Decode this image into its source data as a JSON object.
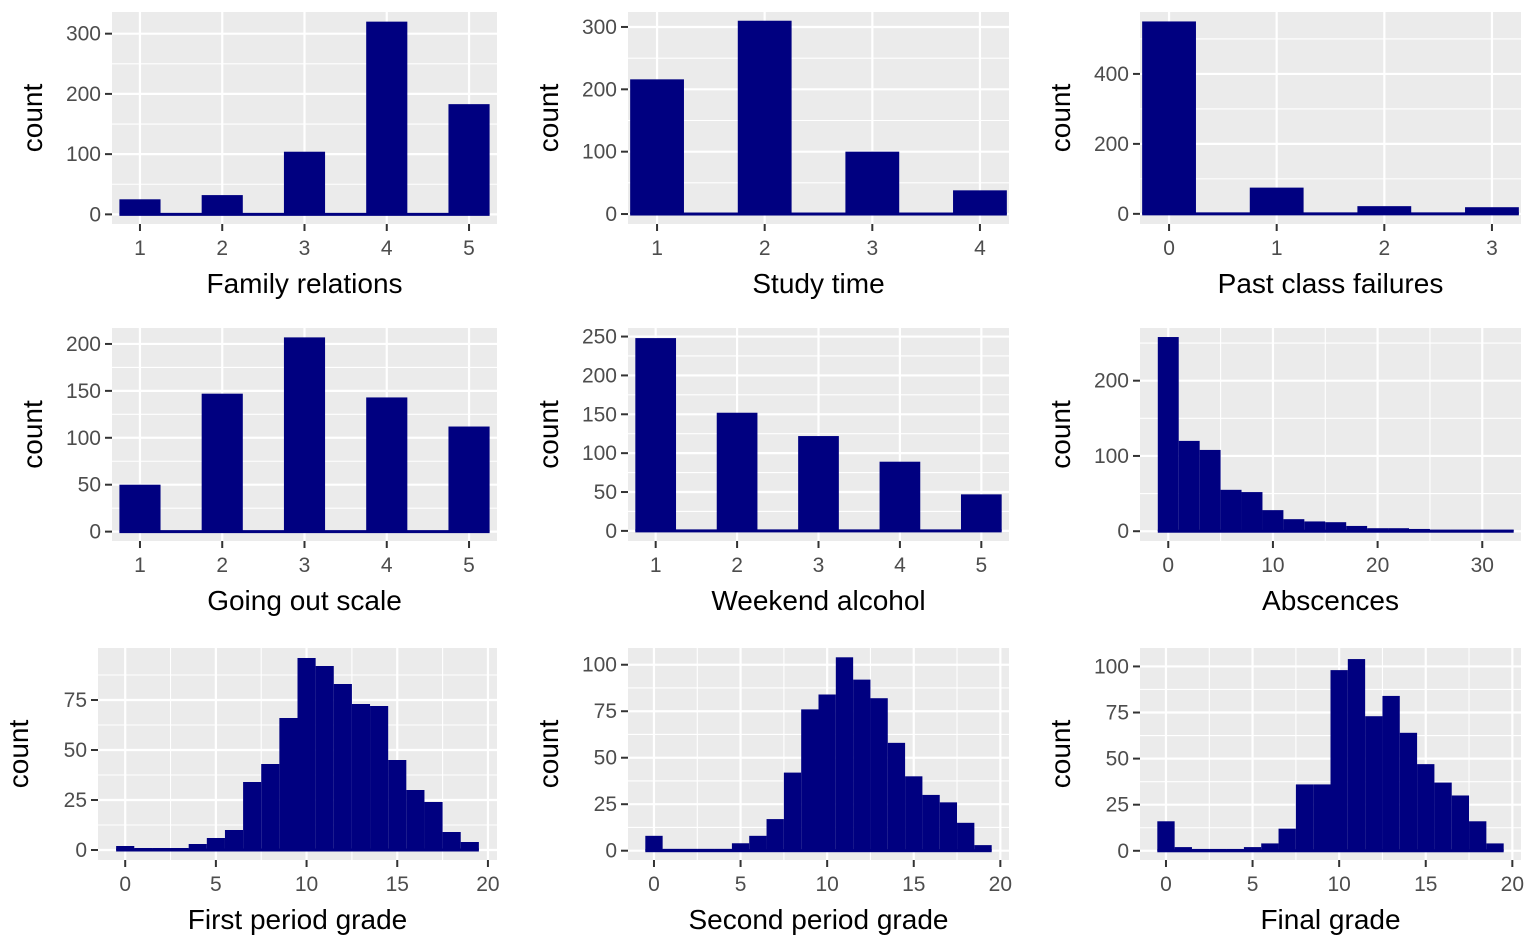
{
  "colors": {
    "bar_fill": "#000080",
    "panel_background": "#EBEBEB",
    "grid": "#FFFFFF"
  },
  "chart_data": [
    {
      "type": "bar",
      "xlabel": "Family relations",
      "ylabel": "count",
      "xlim": [
        0.66,
        5.34
      ],
      "ylim": [
        -16,
        336
      ],
      "bar_width": 0.5,
      "x": [
        1,
        2,
        3,
        4,
        5
      ],
      "values": [
        25,
        32,
        104,
        320,
        183
      ],
      "xticks": [
        1,
        2,
        3,
        4,
        5
      ],
      "xtick_labels": [
        "1",
        "2",
        "3",
        "4",
        "5"
      ],
      "yticks": [
        0,
        100,
        200,
        300
      ],
      "ytick_labels": [
        "0",
        "100",
        "200",
        "300"
      ],
      "x_minor_grid": false
    },
    {
      "type": "bar",
      "xlabel": "Study time",
      "ylabel": "count",
      "xlim": [
        0.73,
        4.27
      ],
      "ylim": [
        -16,
        324
      ],
      "bar_width": 0.5,
      "x": [
        1,
        2,
        3,
        4
      ],
      "values": [
        216,
        310,
        100,
        38
      ],
      "xticks": [
        1,
        2,
        3,
        4
      ],
      "xtick_labels": [
        "1",
        "2",
        "3",
        "4"
      ],
      "yticks": [
        0,
        100,
        200,
        300
      ],
      "ytick_labels": [
        "0",
        "100",
        "200",
        "300"
      ],
      "x_minor_grid": false
    },
    {
      "type": "bar",
      "xlabel": "Past class failures",
      "ylabel": "count",
      "xlim": [
        -0.27,
        3.27
      ],
      "ylim": [
        -29,
        577
      ],
      "bar_width": 0.5,
      "x": [
        0,
        1,
        2,
        3
      ],
      "values": [
        550,
        75,
        22,
        19
      ],
      "xticks": [
        0,
        1,
        2,
        3
      ],
      "xtick_labels": [
        "0",
        "1",
        "2",
        "3"
      ],
      "yticks": [
        0,
        200,
        400
      ],
      "ytick_labels": [
        "0",
        "200",
        "400"
      ],
      "x_minor_grid": false
    },
    {
      "type": "bar",
      "xlabel": "Going out scale",
      "ylabel": "count",
      "xlim": [
        0.66,
        5.34
      ],
      "ylim": [
        -10,
        217
      ],
      "bar_width": 0.5,
      "x": [
        1,
        2,
        3,
        4,
        5
      ],
      "values": [
        50,
        147,
        207,
        143,
        112
      ],
      "xticks": [
        1,
        2,
        3,
        4,
        5
      ],
      "xtick_labels": [
        "1",
        "2",
        "3",
        "4",
        "5"
      ],
      "yticks": [
        0,
        50,
        100,
        150,
        200
      ],
      "ytick_labels": [
        "0",
        "50",
        "100",
        "150",
        "200"
      ],
      "x_minor_grid": false
    },
    {
      "type": "bar",
      "xlabel": "Weekend alcohol",
      "ylabel": "count",
      "xlim": [
        0.66,
        5.34
      ],
      "ylim": [
        -13,
        261
      ],
      "bar_width": 0.5,
      "x": [
        1,
        2,
        3,
        4,
        5
      ],
      "values": [
        248,
        152,
        122,
        89,
        47
      ],
      "xticks": [
        1,
        2,
        3,
        4,
        5
      ],
      "xtick_labels": [
        "1",
        "2",
        "3",
        "4",
        "5"
      ],
      "yticks": [
        0,
        50,
        100,
        150,
        200,
        250
      ],
      "ytick_labels": [
        "0",
        "50",
        "100",
        "150",
        "200",
        "250"
      ],
      "x_minor_grid": false
    },
    {
      "type": "bar",
      "xlabel": "Abscences",
      "ylabel": "count",
      "xlim": [
        -2.7,
        33.7
      ],
      "ylim": [
        -13,
        270
      ],
      "bar_width": 2,
      "x": [
        0,
        2,
        4,
        6,
        8,
        10,
        12,
        14,
        16,
        18,
        20,
        22,
        24,
        26,
        28,
        30,
        32
      ],
      "values": [
        258,
        120,
        108,
        55,
        52,
        28,
        16,
        13,
        12,
        7,
        4,
        4,
        3,
        2,
        2,
        2,
        2
      ],
      "xticks": [
        0,
        10,
        20,
        30
      ],
      "xtick_labels": [
        "0",
        "10",
        "20",
        "30"
      ],
      "yticks": [
        0,
        100,
        200
      ],
      "ytick_labels": [
        "0",
        "100",
        "200"
      ],
      "x_minor_grid": true
    },
    {
      "type": "bar",
      "xlabel": "First period grade",
      "ylabel": "count",
      "xlim": [
        -1.5,
        20.5
      ],
      "ylim": [
        -5,
        101
      ],
      "bar_width": 1,
      "x": [
        0,
        1,
        2,
        3,
        4,
        5,
        6,
        7,
        8,
        9,
        10,
        11,
        12,
        13,
        14,
        15,
        16,
        17,
        18,
        19
      ],
      "values": [
        2,
        1,
        1,
        1,
        3,
        6,
        10,
        34,
        43,
        66,
        96,
        92,
        83,
        73,
        72,
        45,
        30,
        24,
        9,
        4
      ],
      "xticks": [
        0,
        5,
        10,
        15,
        20
      ],
      "xtick_labels": [
        "0",
        "5",
        "10",
        "15",
        "20"
      ],
      "yticks": [
        0,
        25,
        50,
        75
      ],
      "ytick_labels": [
        "0",
        "25",
        "50",
        "75"
      ],
      "x_minor_grid": true
    },
    {
      "type": "bar",
      "xlabel": "Second period grade",
      "ylabel": "count",
      "xlim": [
        -1.5,
        20.5
      ],
      "ylim": [
        -5,
        109
      ],
      "bar_width": 1,
      "x": [
        0,
        1,
        2,
        3,
        4,
        5,
        6,
        7,
        8,
        9,
        10,
        11,
        12,
        13,
        14,
        15,
        16,
        17,
        18,
        19
      ],
      "values": [
        8,
        1,
        1,
        1,
        1,
        4,
        8,
        17,
        42,
        76,
        84,
        104,
        92,
        82,
        58,
        40,
        30,
        26,
        15,
        3
      ],
      "xticks": [
        0,
        5,
        10,
        15,
        20
      ],
      "xtick_labels": [
        "0",
        "5",
        "10",
        "15",
        "20"
      ],
      "yticks": [
        0,
        25,
        50,
        75,
        100
      ],
      "ytick_labels": [
        "0",
        "25",
        "50",
        "75",
        "100"
      ],
      "x_minor_grid": true
    },
    {
      "type": "bar",
      "xlabel": "Final grade",
      "ylabel": "count",
      "xlim": [
        -1.5,
        20.5
      ],
      "ylim": [
        -5,
        110
      ],
      "bar_width": 1,
      "x": [
        0,
        1,
        2,
        3,
        4,
        5,
        6,
        7,
        8,
        9,
        10,
        11,
        12,
        13,
        14,
        15,
        16,
        17,
        18,
        19
      ],
      "values": [
        16,
        2,
        1,
        1,
        1,
        2,
        4,
        12,
        36,
        36,
        98,
        104,
        73,
        84,
        64,
        47,
        37,
        30,
        16,
        4
      ],
      "xticks": [
        0,
        5,
        10,
        15,
        20
      ],
      "xtick_labels": [
        "0",
        "5",
        "10",
        "15",
        "20"
      ],
      "yticks": [
        0,
        25,
        50,
        75,
        100
      ],
      "ytick_labels": [
        "0",
        "25",
        "50",
        "75",
        "100"
      ],
      "x_minor_grid": true
    }
  ]
}
